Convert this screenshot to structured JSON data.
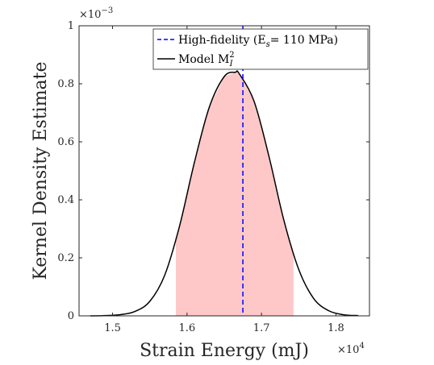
{
  "chart_data": {
    "type": "line",
    "title": "",
    "xlabel": "Strain Energy (mJ)",
    "ylabel": "Kernel Density Estimate",
    "x_multiplier_label": "×10",
    "x_multiplier_exp": "4",
    "y_multiplier_label": "×10",
    "y_multiplier_exp": "−3",
    "xlim": [
      1.455,
      1.845
    ],
    "ylim": [
      0,
      1.0
    ],
    "x_ticks": [
      1.5,
      1.6,
      1.7,
      1.8
    ],
    "x_tick_labels": [
      "1.5",
      "1.6",
      "1.7",
      "1.8"
    ],
    "y_ticks": [
      0,
      0.2,
      0.4,
      0.6,
      0.8,
      1.0
    ],
    "y_tick_labels": [
      "0",
      "0.2",
      "0.4",
      "0.6",
      "0.8",
      "1"
    ],
    "grid": false,
    "legend_position": "top-right",
    "series": [
      {
        "name": "Model M",
        "name_subscript": "I",
        "name_superscript": "2",
        "kind": "curve",
        "color": "#000000",
        "x": [
          1.47,
          1.49,
          1.51,
          1.53,
          1.55,
          1.57,
          1.59,
          1.61,
          1.63,
          1.65,
          1.665,
          1.67,
          1.69,
          1.71,
          1.73,
          1.75,
          1.77,
          1.79,
          1.81,
          1.83
        ],
        "y": [
          0.0,
          0.001,
          0.004,
          0.015,
          0.05,
          0.14,
          0.31,
          0.53,
          0.72,
          0.825,
          0.84,
          0.835,
          0.74,
          0.55,
          0.33,
          0.16,
          0.06,
          0.018,
          0.004,
          0.001
        ]
      },
      {
        "name": "High-fidelity (E",
        "name_subscript": "s",
        "name_suffix": "= 110 MPa)",
        "kind": "vline",
        "color": "#0000ff",
        "x_value": 1.675
      }
    ],
    "shaded_interval": {
      "x_from": 1.585,
      "x_to": 1.743,
      "color": "#ffc8c8"
    }
  }
}
